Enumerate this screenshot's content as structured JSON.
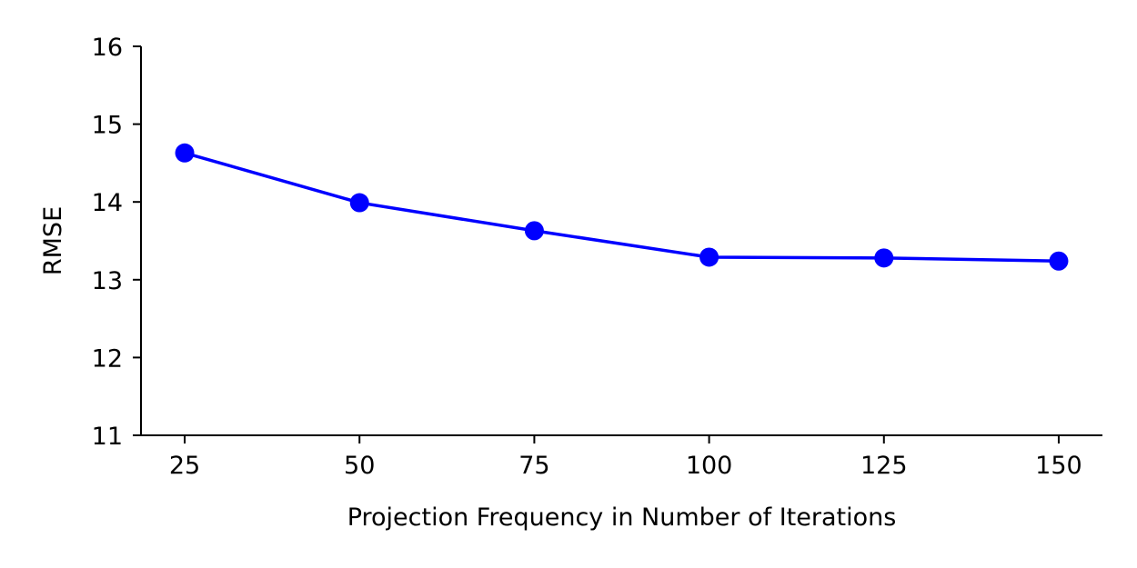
{
  "chart_data": {
    "type": "line",
    "title": "",
    "xlabel": "Projection Frequency in Number of Iterations",
    "ylabel": "RMSE",
    "x": [
      25,
      50,
      75,
      100,
      125,
      150
    ],
    "series": [
      {
        "values": [
          14.63,
          13.99,
          13.63,
          13.29,
          13.28,
          13.24
        ],
        "color": "#0000ff"
      }
    ],
    "xticks": [
      "25",
      "50",
      "75",
      "100",
      "125",
      "150"
    ],
    "yticks": [
      "11",
      "12",
      "13",
      "14",
      "15",
      "16"
    ],
    "xlim": [
      18.75,
      156.25
    ],
    "ylim": [
      11,
      16
    ],
    "grid": false,
    "legend": "none"
  }
}
